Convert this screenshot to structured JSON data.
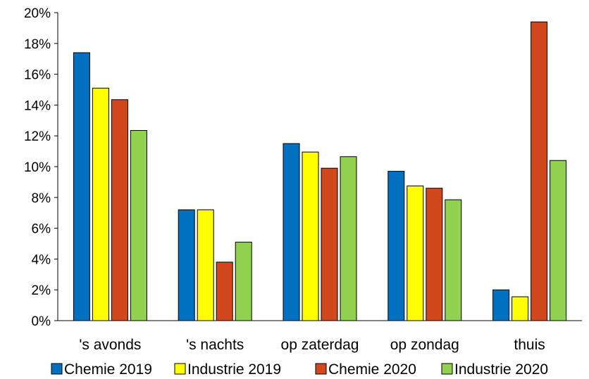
{
  "chart_data": {
    "type": "bar",
    "categories": [
      "'s avonds",
      "'s nachts",
      "op zaterdag",
      "op zondag",
      "thuis"
    ],
    "series": [
      {
        "name": "Chemie 2019",
        "color": "#0070C0",
        "values": [
          17.4,
          7.2,
          11.5,
          9.7,
          2.0
        ]
      },
      {
        "name": "Industrie 2019",
        "color": "#FFFF00",
        "values": [
          15.1,
          7.2,
          10.95,
          8.75,
          1.55
        ]
      },
      {
        "name": "Chemie 2020",
        "color": "#D2481D",
        "values": [
          14.35,
          3.8,
          9.9,
          8.6,
          19.4
        ]
      },
      {
        "name": "Industrie 2020",
        "color": "#92D050",
        "values": [
          12.35,
          5.1,
          10.65,
          7.85,
          10.4
        ]
      }
    ],
    "ylim": [
      0,
      20
    ],
    "yticks": [
      "0%",
      "2%",
      "4%",
      "6%",
      "8%",
      "10%",
      "12%",
      "14%",
      "16%",
      "18%",
      "20%"
    ],
    "grid": false,
    "legend_position": "bottom"
  }
}
